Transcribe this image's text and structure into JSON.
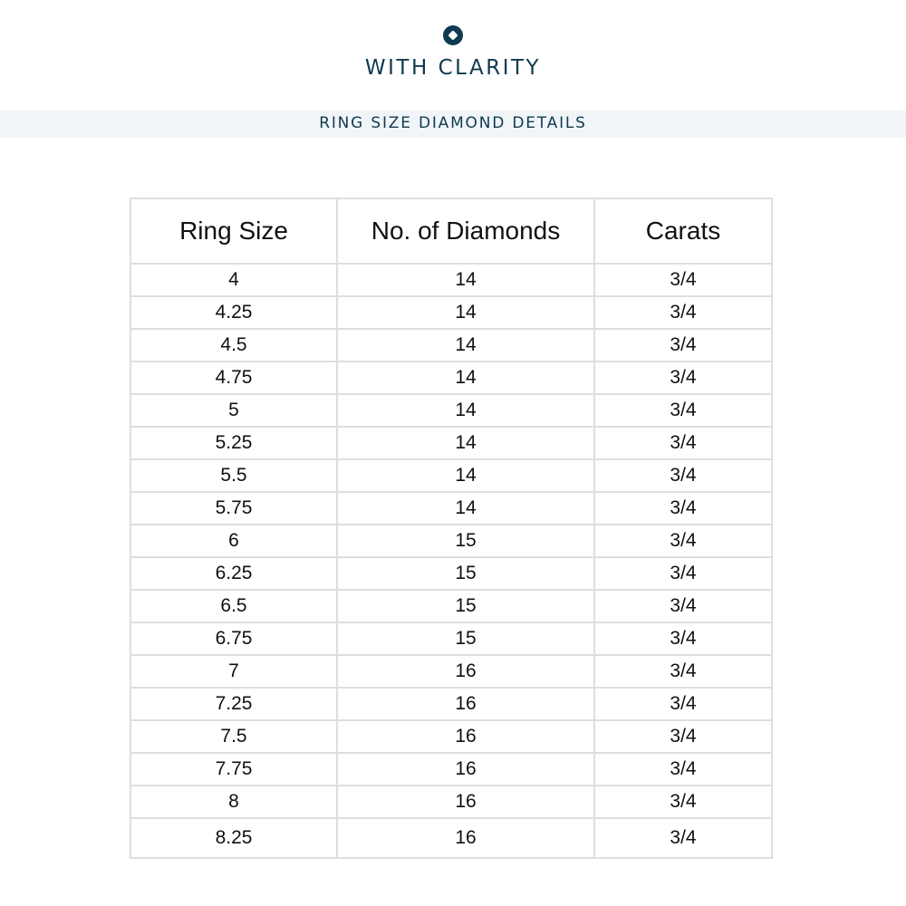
{
  "brand": {
    "name": "WITH CLARITY",
    "logo_icon": "diamond-circle-icon",
    "color": "#0f3a4f"
  },
  "banner": {
    "title": "RING SIZE DIAMOND DETAILS"
  },
  "table": {
    "headers": [
      "Ring Size",
      "No. of Diamonds",
      "Carats"
    ],
    "rows": [
      [
        "4",
        "14",
        "3/4"
      ],
      [
        "4.25",
        "14",
        "3/4"
      ],
      [
        "4.5",
        "14",
        "3/4"
      ],
      [
        "4.75",
        "14",
        "3/4"
      ],
      [
        "5",
        "14",
        "3/4"
      ],
      [
        "5.25",
        "14",
        "3/4"
      ],
      [
        "5.5",
        "14",
        "3/4"
      ],
      [
        "5.75",
        "14",
        "3/4"
      ],
      [
        "6",
        "15",
        "3/4"
      ],
      [
        "6.25",
        "15",
        "3/4"
      ],
      [
        "6.5",
        "15",
        "3/4"
      ],
      [
        "6.75",
        "15",
        "3/4"
      ],
      [
        "7",
        "16",
        "3/4"
      ],
      [
        "7.25",
        "16",
        "3/4"
      ],
      [
        "7.5",
        "16",
        "3/4"
      ],
      [
        "7.75",
        "16",
        "3/4"
      ],
      [
        "8",
        "16",
        "3/4"
      ],
      [
        "8.25",
        "16",
        "3/4"
      ]
    ]
  }
}
